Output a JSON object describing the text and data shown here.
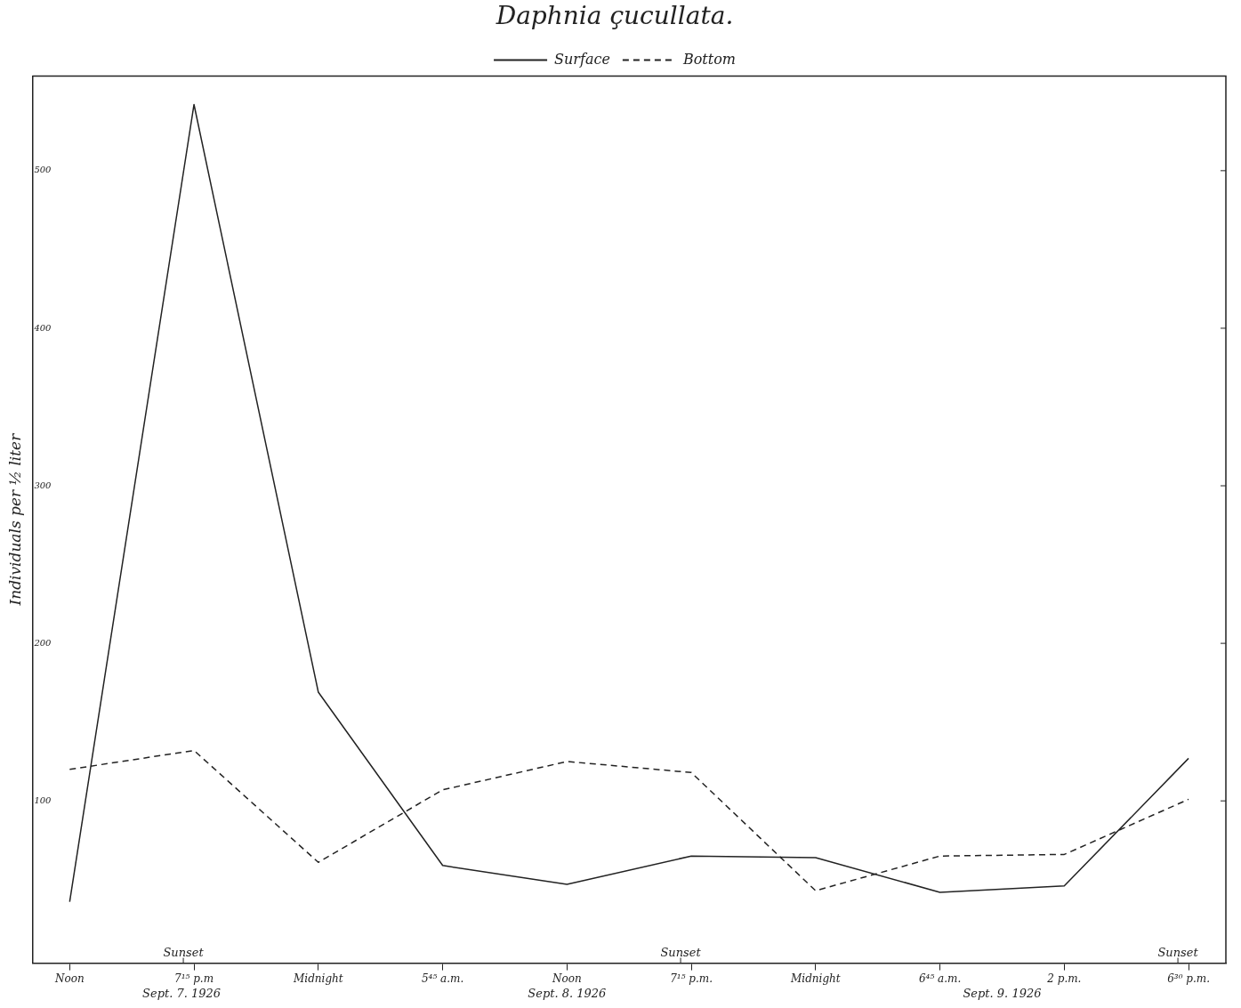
{
  "chart_data": {
    "type": "line",
    "title": "Daphnia çucullata.",
    "ylabel": "Individuals per ½ liter",
    "categories": [
      "Noon",
      "7¹⁵ p.m",
      "Midnight",
      "5⁴⁵ a.m.",
      "Noon",
      "7¹⁵ p.m.",
      "Midnight",
      "6⁴⁵ a.m.",
      "2 p.m.",
      "6³⁰ p.m."
    ],
    "series": [
      {
        "name": "Surface",
        "color": "#222222",
        "line_style": "solid",
        "values": [
          36,
          542,
          169,
          59,
          47,
          65,
          64,
          42,
          46,
          127
        ]
      },
      {
        "name": "Bottom",
        "color": "#222222",
        "line_style": "dashed",
        "values": [
          120,
          132,
          61,
          107,
          125,
          118,
          43,
          65,
          66,
          101
        ]
      }
    ],
    "ylim": [
      -3,
      560
    ],
    "yticks": [
      100,
      200,
      300,
      400,
      500
    ],
    "annotations": [
      "Sunset",
      "Sunset",
      "Sunset",
      "Sept. 7. 1926",
      "Sept. 8. 1926",
      "Sept. 9. 1926"
    ],
    "legend": "top",
    "grid": false,
    "marker": "none"
  }
}
